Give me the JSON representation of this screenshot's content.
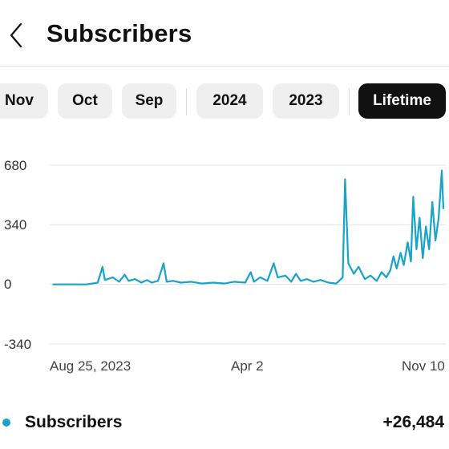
{
  "header": {
    "title": "Subscribers",
    "back_icon": "chevron-left-icon"
  },
  "period_tabs": [
    {
      "label": "Nov",
      "selected": false
    },
    {
      "label": "Oct",
      "selected": false
    },
    {
      "label": "Sep",
      "selected": false
    },
    {
      "label": "2024",
      "selected": false
    },
    {
      "label": "2023",
      "selected": false
    },
    {
      "label": "Lifetime",
      "selected": true
    }
  ],
  "legend": {
    "label": "Subscribers",
    "value": "+26,484",
    "color": "#1aa3c8"
  },
  "chart_data": {
    "type": "line",
    "title": "",
    "xlabel": "",
    "ylabel": "",
    "ylim": [
      -340,
      680
    ],
    "yticks": [
      "680",
      "340",
      "0",
      "-340"
    ],
    "xtick_labels": [
      "Aug 25, 2023",
      "Apr 2",
      "Nov 10"
    ],
    "grid": true,
    "series": [
      {
        "name": "Subscribers",
        "color": "#1aa3c8",
        "points": [
          [
            "2023-07-06",
            0
          ],
          [
            "2023-07-20",
            0
          ],
          [
            "2023-08-03",
            0
          ],
          [
            "2023-08-17",
            0
          ],
          [
            "2023-08-25",
            5
          ],
          [
            "2023-09-01",
            10
          ],
          [
            "2023-09-07",
            100
          ],
          [
            "2023-09-10",
            25
          ],
          [
            "2023-09-20",
            40
          ],
          [
            "2023-09-28",
            15
          ],
          [
            "2023-10-05",
            55
          ],
          [
            "2023-10-10",
            20
          ],
          [
            "2023-10-18",
            30
          ],
          [
            "2023-10-26",
            10
          ],
          [
            "2023-11-02",
            25
          ],
          [
            "2023-11-08",
            10
          ],
          [
            "2023-11-16",
            20
          ],
          [
            "2023-11-23",
            120
          ],
          [
            "2023-11-27",
            15
          ],
          [
            "2023-12-05",
            20
          ],
          [
            "2023-12-15",
            10
          ],
          [
            "2023-12-28",
            15
          ],
          [
            "2024-01-10",
            5
          ],
          [
            "2024-01-25",
            10
          ],
          [
            "2024-02-08",
            5
          ],
          [
            "2024-02-20",
            15
          ],
          [
            "2024-03-05",
            10
          ],
          [
            "2024-03-12",
            70
          ],
          [
            "2024-03-16",
            15
          ],
          [
            "2024-03-24",
            40
          ],
          [
            "2024-04-02",
            20
          ],
          [
            "2024-04-10",
            120
          ],
          [
            "2024-04-15",
            40
          ],
          [
            "2024-04-25",
            50
          ],
          [
            "2024-05-02",
            15
          ],
          [
            "2024-05-08",
            60
          ],
          [
            "2024-05-14",
            20
          ],
          [
            "2024-05-22",
            30
          ],
          [
            "2024-05-30",
            15
          ],
          [
            "2024-06-08",
            25
          ],
          [
            "2024-06-18",
            10
          ],
          [
            "2024-06-28",
            5
          ],
          [
            "2024-07-06",
            40
          ],
          [
            "2024-07-09",
            600
          ],
          [
            "2024-07-13",
            120
          ],
          [
            "2024-07-20",
            60
          ],
          [
            "2024-07-26",
            100
          ],
          [
            "2024-08-03",
            30
          ],
          [
            "2024-08-10",
            50
          ],
          [
            "2024-08-18",
            20
          ],
          [
            "2024-08-24",
            70
          ],
          [
            "2024-08-30",
            40
          ],
          [
            "2024-09-04",
            80
          ],
          [
            "2024-09-08",
            160
          ],
          [
            "2024-09-12",
            90
          ],
          [
            "2024-09-17",
            180
          ],
          [
            "2024-09-21",
            110
          ],
          [
            "2024-09-26",
            240
          ],
          [
            "2024-09-30",
            130
          ],
          [
            "2024-10-03",
            500
          ],
          [
            "2024-10-07",
            200
          ],
          [
            "2024-10-11",
            380
          ],
          [
            "2024-10-15",
            150
          ],
          [
            "2024-10-19",
            330
          ],
          [
            "2024-10-23",
            200
          ],
          [
            "2024-10-27",
            470
          ],
          [
            "2024-10-31",
            250
          ],
          [
            "2024-11-04",
            380
          ],
          [
            "2024-11-08",
            650
          ],
          [
            "2024-11-10",
            430
          ]
        ]
      }
    ]
  }
}
